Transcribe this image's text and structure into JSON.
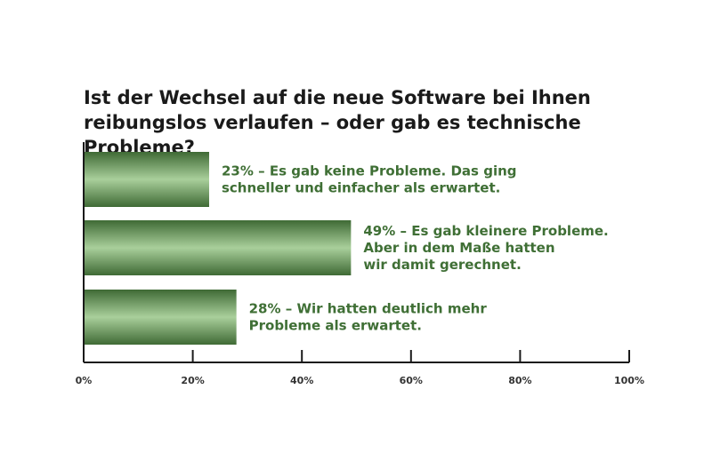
{
  "chart_data": {
    "type": "bar",
    "orientation": "horizontal",
    "title": "Ist der Wechsel auf die neue Software bei Ihnen\nreibungslos verlaufen – oder gab es technische Probleme?",
    "categories": [
      "23% – Es gab keine Probleme. Das ging\nschneller und einfacher als erwartet.",
      "49% – Es gab kleinere Probleme.\nAber in dem Maße hatten\nwir damit gerechnet.",
      "28% – Wir hatten deutlich mehr\nProbleme als erwartet."
    ],
    "values": [
      23,
      49,
      28
    ],
    "xlim": [
      0,
      100
    ],
    "x_ticks": [
      "0%",
      "20%",
      "40%",
      "60%",
      "80%",
      "100%"
    ],
    "x_tick_values": [
      0,
      20,
      40,
      60,
      80,
      100
    ],
    "grid": false,
    "colors": {
      "bar": "#3f6f35",
      "label": "#3f6f35",
      "axis": "#1a1a1a"
    }
  }
}
